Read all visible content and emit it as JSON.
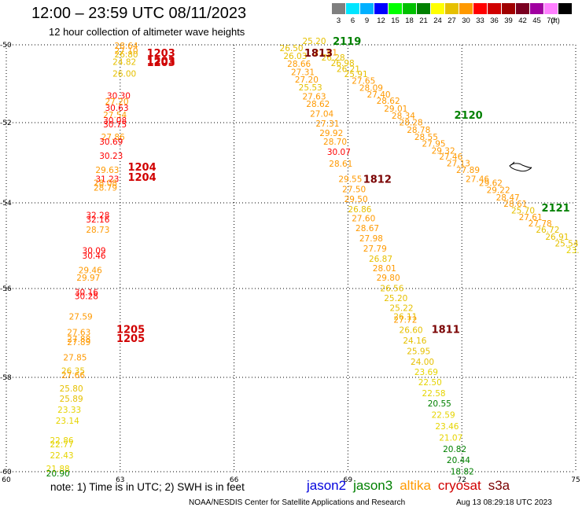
{
  "header": {
    "title": "12:00 – 23:59 UTC 08/11/2023",
    "subtitle": "12 hour collection of altimeter wave heights"
  },
  "legend": {
    "unit": "(ft)",
    "bins": [
      {
        "label": "3",
        "color": "#7f7f7f"
      },
      {
        "label": "6",
        "color": "#00e5ff"
      },
      {
        "label": "9",
        "color": "#00b0ff"
      },
      {
        "label": "12",
        "color": "#0000ff"
      },
      {
        "label": "15",
        "color": "#00ff00"
      },
      {
        "label": "18",
        "color": "#00c000"
      },
      {
        "label": "21",
        "color": "#008000"
      },
      {
        "label": "24",
        "color": "#ffff00"
      },
      {
        "label": "27",
        "color": "#e6c000"
      },
      {
        "label": "30",
        "color": "#ff9900"
      },
      {
        "label": "33",
        "color": "#ff0000"
      },
      {
        "label": "36",
        "color": "#d00000"
      },
      {
        "label": "39",
        "color": "#a00000"
      },
      {
        "label": "42",
        "color": "#7a0020"
      },
      {
        "label": "45",
        "color": "#a000a0"
      },
      {
        "label": "70",
        "color": "#ff80ff"
      },
      {
        "label": "",
        "color": "#000000"
      }
    ]
  },
  "map": {
    "lat_labels": [
      "-50",
      "-52",
      "-54",
      "-56",
      "-58",
      "-60"
    ],
    "lon_labels": [
      "60",
      "63",
      "66",
      "69",
      "72",
      "75"
    ],
    "lat_range": [
      -60,
      -50
    ],
    "lon_range": [
      60,
      75
    ]
  },
  "passes": [
    {
      "id": "1203",
      "color": "#d00000",
      "labels": [
        {
          "lon": 63.7,
          "lat": -50.3
        },
        {
          "lon": 63.7,
          "lat": -50.5
        },
        {
          "lon": 63.7,
          "lat": -50.55
        }
      ]
    },
    {
      "id": "1204",
      "color": "#d00000",
      "labels": [
        {
          "lon": 63.2,
          "lat": -53.2
        },
        {
          "lon": 63.2,
          "lat": -53.45
        }
      ]
    },
    {
      "id": "1205",
      "color": "#d00000",
      "labels": [
        {
          "lon": 62.9,
          "lat": -57.0
        },
        {
          "lon": 62.9,
          "lat": -57.2
        }
      ]
    },
    {
      "id": "1813",
      "color": "#7a0000",
      "labels": [
        {
          "lon": 67.85,
          "lat": -50.3
        }
      ]
    },
    {
      "id": "1812",
      "color": "#7a0000",
      "labels": [
        {
          "lon": 69.4,
          "lat": -53.5
        }
      ]
    },
    {
      "id": "1811",
      "color": "#7a0000",
      "labels": [
        {
          "lon": 71.2,
          "lat": -57.0
        }
      ]
    },
    {
      "id": "2119",
      "color": "#008000",
      "labels": [
        {
          "lon": 68.6,
          "lat": -50.0
        }
      ]
    },
    {
      "id": "2120",
      "color": "#008000",
      "labels": [
        {
          "lon": 71.8,
          "lat": -51.9
        }
      ]
    },
    {
      "id": "2121",
      "color": "#008000",
      "labels": [
        {
          "lon": 74.1,
          "lat": -54.2
        }
      ]
    }
  ],
  "points": [
    {
      "v": "28.64",
      "lon": 62.85,
      "lat": -50.1
    },
    {
      "v": "27.10",
      "lon": 62.85,
      "lat": -50.23
    },
    {
      "v": "26.80",
      "lon": 62.85,
      "lat": -50.32
    },
    {
      "v": "24.82",
      "lon": 62.8,
      "lat": -50.52
    },
    {
      "v": "26.00",
      "lon": 62.8,
      "lat": -50.82
    },
    {
      "v": "30.30",
      "lon": 62.65,
      "lat": -51.38
    },
    {
      "v": "27.20",
      "lon": 62.6,
      "lat": -51.54
    },
    {
      "v": "30.63",
      "lon": 62.6,
      "lat": -51.7
    },
    {
      "v": "27.54",
      "lon": 62.55,
      "lat": -51.88
    },
    {
      "v": "30.08",
      "lon": 62.55,
      "lat": -52.02
    },
    {
      "v": "30.75",
      "lon": 62.55,
      "lat": -52.12
    },
    {
      "v": "27.86",
      "lon": 62.5,
      "lat": -52.43
    },
    {
      "v": "30.69",
      "lon": 62.45,
      "lat": -52.55
    },
    {
      "v": "30.23",
      "lon": 62.45,
      "lat": -52.9
    },
    {
      "v": "29.63",
      "lon": 62.35,
      "lat": -53.25
    },
    {
      "v": "31.23",
      "lon": 62.35,
      "lat": -53.48
    },
    {
      "v": "28.08",
      "lon": 62.3,
      "lat": -53.58
    },
    {
      "v": "28.79",
      "lon": 62.3,
      "lat": -53.7
    },
    {
      "v": "32.28",
      "lon": 62.1,
      "lat": -54.36
    },
    {
      "v": "32.16",
      "lon": 62.1,
      "lat": -54.46
    },
    {
      "v": "28.73",
      "lon": 62.1,
      "lat": -54.7
    },
    {
      "v": "30.09",
      "lon": 62.0,
      "lat": -55.18
    },
    {
      "v": "30.46",
      "lon": 62.0,
      "lat": -55.3
    },
    {
      "v": "29.46",
      "lon": 61.9,
      "lat": -55.64
    },
    {
      "v": "29.97",
      "lon": 61.85,
      "lat": -55.82
    },
    {
      "v": "30.16",
      "lon": 61.8,
      "lat": -56.15
    },
    {
      "v": "30.28",
      "lon": 61.8,
      "lat": -56.24
    },
    {
      "v": "27.59",
      "lon": 61.65,
      "lat": -56.7
    },
    {
      "v": "27.63",
      "lon": 61.6,
      "lat": -57.05
    },
    {
      "v": "27.88",
      "lon": 61.6,
      "lat": -57.2
    },
    {
      "v": "27.89",
      "lon": 61.6,
      "lat": -57.27
    },
    {
      "v": "27.85",
      "lon": 61.5,
      "lat": -57.62
    },
    {
      "v": "26.35",
      "lon": 61.45,
      "lat": -57.92
    },
    {
      "v": "27.66",
      "lon": 61.45,
      "lat": -58.02
    },
    {
      "v": "25.80",
      "lon": 61.4,
      "lat": -58.3
    },
    {
      "v": "25.89",
      "lon": 61.4,
      "lat": -58.52
    },
    {
      "v": "23.33",
      "lon": 61.35,
      "lat": -58.75
    },
    {
      "v": "23.14",
      "lon": 61.3,
      "lat": -58.98
    },
    {
      "v": "22.86",
      "lon": 61.15,
      "lat": -59.4
    },
    {
      "v": "22.77",
      "lon": 61.15,
      "lat": -59.48
    },
    {
      "v": "22.43",
      "lon": 61.15,
      "lat": -59.72
    },
    {
      "v": "21.88",
      "lon": 61.05,
      "lat": -60.0
    },
    {
      "v": "20.90",
      "lon": 61.05,
      "lat": -60.1
    },
    {
      "v": "25.20",
      "lon": 67.8,
      "lat": -49.98
    },
    {
      "v": "26.50",
      "lon": 67.2,
      "lat": -50.16
    },
    {
      "v": "27.61",
      "lon": 68.1,
      "lat": -50.27
    },
    {
      "v": "26.03",
      "lon": 67.3,
      "lat": -50.36
    },
    {
      "v": "26.28",
      "lon": 68.3,
      "lat": -50.4
    },
    {
      "v": "26.98",
      "lon": 68.55,
      "lat": -50.55
    },
    {
      "v": "28.66",
      "lon": 67.4,
      "lat": -50.57
    },
    {
      "v": "26.21",
      "lon": 68.7,
      "lat": -50.7
    },
    {
      "v": "27.31",
      "lon": 67.5,
      "lat": -50.78
    },
    {
      "v": "25.91",
      "lon": 68.9,
      "lat": -50.83
    },
    {
      "v": "27.20",
      "lon": 67.6,
      "lat": -50.97
    },
    {
      "v": "27.65",
      "lon": 69.1,
      "lat": -51.0
    },
    {
      "v": "25.53",
      "lon": 67.7,
      "lat": -51.17
    },
    {
      "v": "28.09",
      "lon": 69.3,
      "lat": -51.18
    },
    {
      "v": "27.40",
      "lon": 69.5,
      "lat": -51.35
    },
    {
      "v": "27.63",
      "lon": 67.8,
      "lat": -51.4
    },
    {
      "v": "28.62",
      "lon": 69.75,
      "lat": -51.52
    },
    {
      "v": "28.62",
      "lon": 67.9,
      "lat": -51.6
    },
    {
      "v": "29.01",
      "lon": 69.95,
      "lat": -51.72
    },
    {
      "v": "27.04",
      "lon": 68.0,
      "lat": -51.85
    },
    {
      "v": "28.34",
      "lon": 70.15,
      "lat": -51.9
    },
    {
      "v": "28.28",
      "lon": 70.35,
      "lat": -52.07
    },
    {
      "v": "27.31",
      "lon": 68.15,
      "lat": -52.1
    },
    {
      "v": "28.78",
      "lon": 70.55,
      "lat": -52.25
    },
    {
      "v": "29.92",
      "lon": 68.25,
      "lat": -52.33
    },
    {
      "v": "28.55",
      "lon": 70.75,
      "lat": -52.43
    },
    {
      "v": "28.70",
      "lon": 68.35,
      "lat": -52.55
    },
    {
      "v": "27.95",
      "lon": 70.95,
      "lat": -52.6
    },
    {
      "v": "29.32",
      "lon": 71.2,
      "lat": -52.77
    },
    {
      "v": "30.07",
      "lon": 68.45,
      "lat": -52.8
    },
    {
      "v": "27.46",
      "lon": 71.4,
      "lat": -52.92
    },
    {
      "v": "28.61",
      "lon": 68.5,
      "lat": -53.1
    },
    {
      "v": "27.13",
      "lon": 71.6,
      "lat": -53.09
    },
    {
      "v": "27.89",
      "lon": 71.85,
      "lat": -53.25
    },
    {
      "v": "29.55",
      "lon": 68.75,
      "lat": -53.48
    },
    {
      "v": "27.46",
      "lon": 72.1,
      "lat": -53.48
    },
    {
      "v": "27.50",
      "lon": 68.85,
      "lat": -53.74
    },
    {
      "v": "29.62",
      "lon": 72.45,
      "lat": -53.58
    },
    {
      "v": "29.22",
      "lon": 72.65,
      "lat": -53.75
    },
    {
      "v": "29.50",
      "lon": 68.9,
      "lat": -53.98
    },
    {
      "v": "28.47",
      "lon": 72.9,
      "lat": -53.94
    },
    {
      "v": "28.61",
      "lon": 73.1,
      "lat": -54.09
    },
    {
      "v": "26.86",
      "lon": 69.0,
      "lat": -54.22
    },
    {
      "v": "25.70",
      "lon": 73.3,
      "lat": -54.25
    },
    {
      "v": "27.61",
      "lon": 73.5,
      "lat": -54.4
    },
    {
      "v": "27.60",
      "lon": 69.1,
      "lat": -54.43
    },
    {
      "v": "27.78",
      "lon": 73.75,
      "lat": -54.55
    },
    {
      "v": "28.67",
      "lon": 69.2,
      "lat": -54.66
    },
    {
      "v": "26.72",
      "lon": 73.95,
      "lat": -54.7
    },
    {
      "v": "26.91",
      "lon": 74.2,
      "lat": -54.86
    },
    {
      "v": "27.98",
      "lon": 69.3,
      "lat": -54.9
    },
    {
      "v": "25.54",
      "lon": 74.45,
      "lat": -55.02
    },
    {
      "v": "23.",
      "lon": 74.75,
      "lat": -55.17
    },
    {
      "v": "27.79",
      "lon": 69.4,
      "lat": -55.14
    },
    {
      "v": "26.87",
      "lon": 69.55,
      "lat": -55.38
    },
    {
      "v": "28.01",
      "lon": 69.65,
      "lat": -55.6
    },
    {
      "v": "29.80",
      "lon": 69.75,
      "lat": -55.82
    },
    {
      "v": "26.56",
      "lon": 69.85,
      "lat": -56.06
    },
    {
      "v": "25.20",
      "lon": 69.95,
      "lat": -56.28
    },
    {
      "v": "25.22",
      "lon": 70.1,
      "lat": -56.5
    },
    {
      "v": "26.11",
      "lon": 70.2,
      "lat": -56.7
    },
    {
      "v": "27.72",
      "lon": 70.2,
      "lat": -56.77
    },
    {
      "v": "26.60",
      "lon": 70.35,
      "lat": -57.0
    },
    {
      "v": "24.16",
      "lon": 70.45,
      "lat": -57.24
    },
    {
      "v": "25.95",
      "lon": 70.55,
      "lat": -57.48
    },
    {
      "v": "24.00",
      "lon": 70.65,
      "lat": -57.72
    },
    {
      "v": "23.69",
      "lon": 70.75,
      "lat": -57.95
    },
    {
      "v": "22.50",
      "lon": 70.85,
      "lat": -58.17
    },
    {
      "v": "22.58",
      "lon": 70.95,
      "lat": -58.4
    },
    {
      "v": "20.55",
      "lon": 71.1,
      "lat": -58.62
    },
    {
      "v": "22.59",
      "lon": 71.2,
      "lat": -58.86
    },
    {
      "v": "23.46",
      "lon": 71.3,
      "lat": -59.1
    },
    {
      "v": "21.07",
      "lon": 71.4,
      "lat": -59.34
    },
    {
      "v": "20.82",
      "lon": 71.5,
      "lat": -59.58
    },
    {
      "v": "20.44",
      "lon": 71.6,
      "lat": -59.82
    },
    {
      "v": "18.82",
      "lon": 71.7,
      "lat": -60.06
    }
  ],
  "footer": {
    "note": "note: 1) Time is in UTC; 2) SWH is in feet",
    "satellites": [
      {
        "name": "jason2",
        "color": "#0000dd"
      },
      {
        "name": "jason3",
        "color": "#008000"
      },
      {
        "name": "altika",
        "color": "#ff9900"
      },
      {
        "name": "cryosat",
        "color": "#d00000"
      },
      {
        "name": "s3a",
        "color": "#7a0000"
      }
    ],
    "credit": "NOAA/NESDIS Center for Satellite Applications and Research",
    "timestamp": "Aug 13 08:29:18 UTC 2023"
  }
}
